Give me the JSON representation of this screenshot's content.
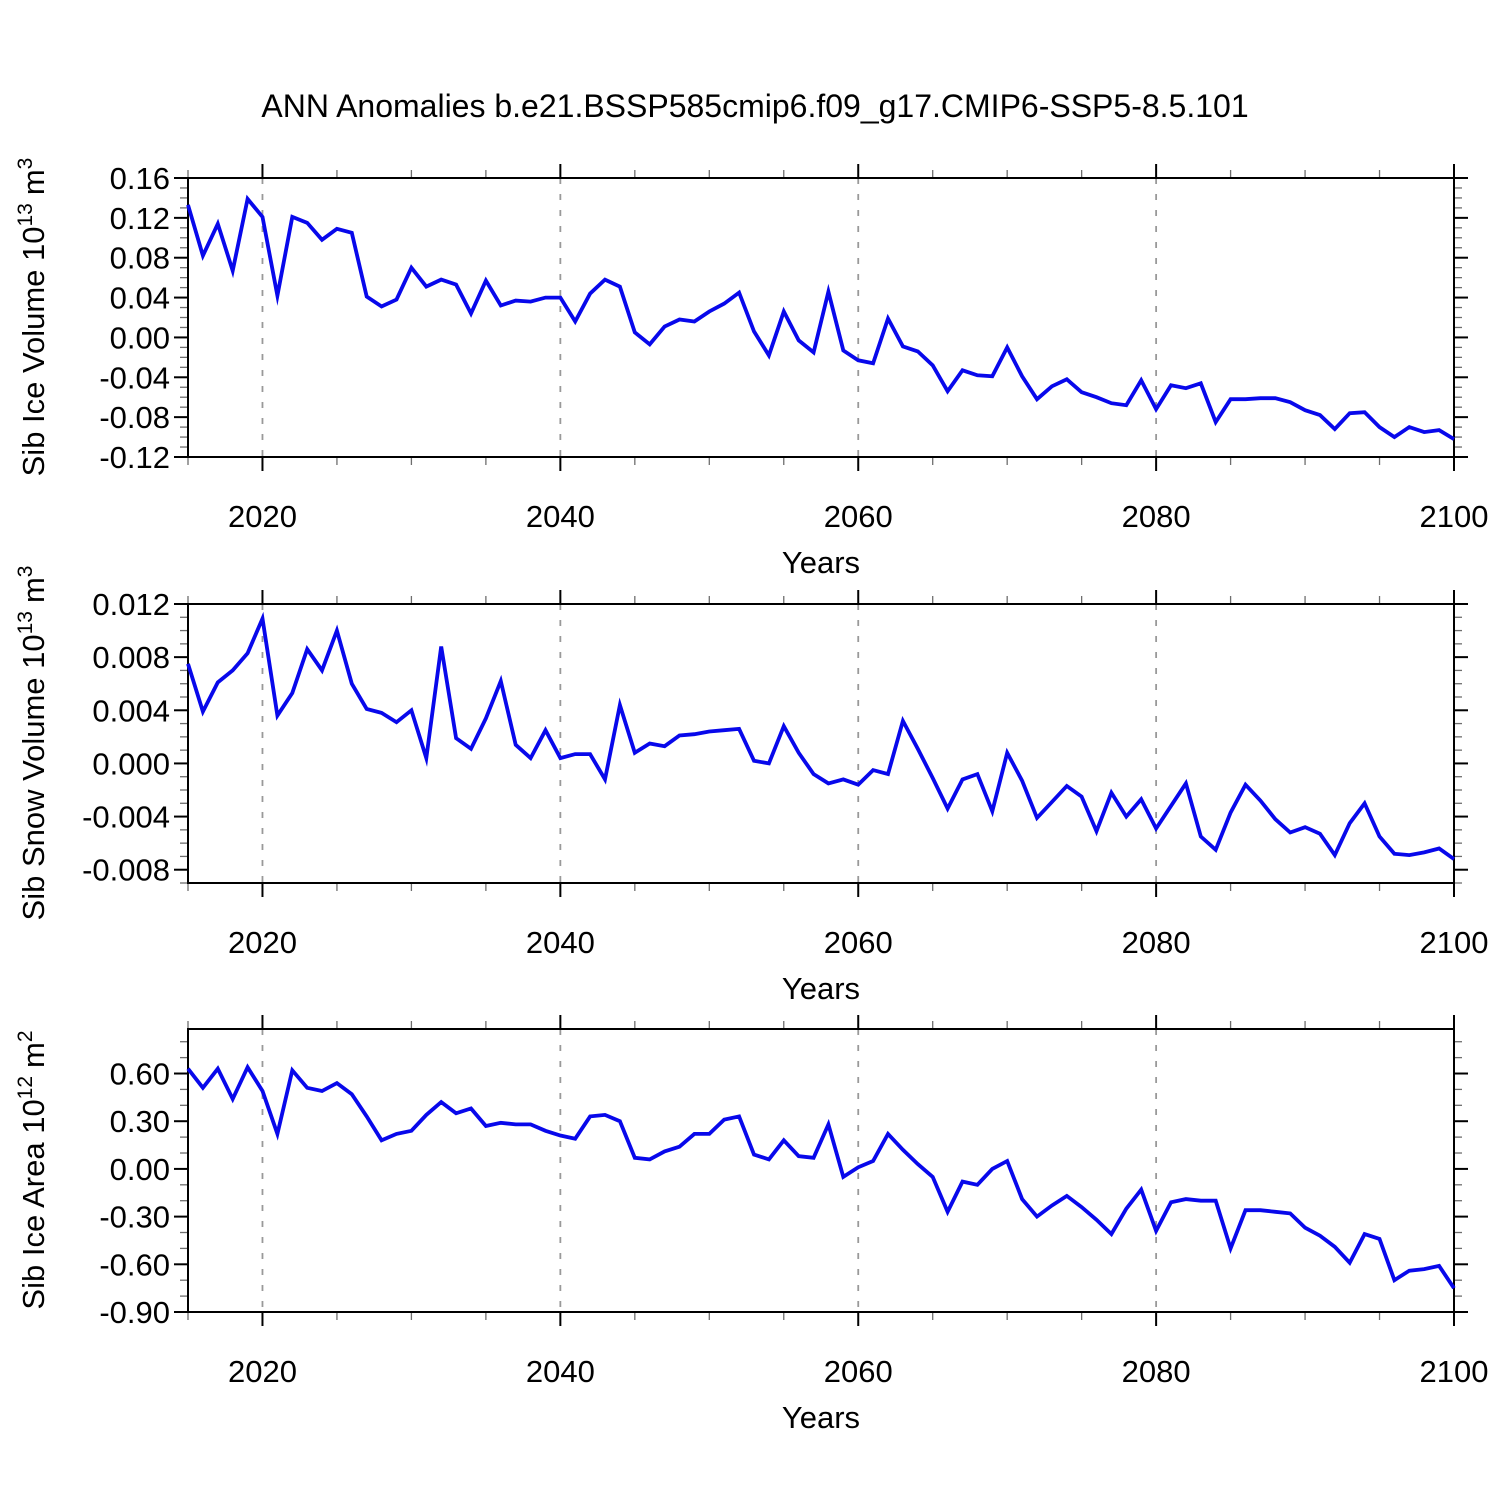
{
  "figure": {
    "title": "ANN Anomalies b.e21.BSSP585cmip6.f09_g17.CMIP6-SSP5-8.5.101"
  },
  "years": [
    2015,
    2016,
    2017,
    2018,
    2019,
    2020,
    2021,
    2022,
    2023,
    2024,
    2025,
    2026,
    2027,
    2028,
    2029,
    2030,
    2031,
    2032,
    2033,
    2034,
    2035,
    2036,
    2037,
    2038,
    2039,
    2040,
    2041,
    2042,
    2043,
    2044,
    2045,
    2046,
    2047,
    2048,
    2049,
    2050,
    2051,
    2052,
    2053,
    2054,
    2055,
    2056,
    2057,
    2058,
    2059,
    2060,
    2061,
    2062,
    2063,
    2064,
    2065,
    2066,
    2067,
    2068,
    2069,
    2070,
    2071,
    2072,
    2073,
    2074,
    2075,
    2076,
    2077,
    2078,
    2079,
    2080,
    2081,
    2082,
    2083,
    2084,
    2085,
    2086,
    2087,
    2088,
    2089,
    2090,
    2091,
    2092,
    2093,
    2094,
    2095,
    2096,
    2097,
    2098,
    2099,
    2100
  ],
  "chart_data": [
    {
      "type": "line",
      "name": "sib_ice_volume",
      "ylabel": {
        "prefix": "Sib Ice Volume 10",
        "exp": "13",
        "unit": "m",
        "unit_exp": "3"
      },
      "xlabel": "Years",
      "ylim": [
        -0.12,
        0.16
      ],
      "yticks": [
        0.16,
        0.12,
        0.08,
        0.04,
        0.0,
        -0.04,
        -0.08,
        -0.12
      ],
      "ytick_labels": [
        "0.16",
        "0.12",
        "0.08",
        "0.04",
        "0.00",
        "-0.04",
        "-0.08",
        "-0.12"
      ],
      "y_minor_step": 0.01,
      "xticks": [
        2020,
        2040,
        2060,
        2080,
        2100
      ],
      "xtick_labels": [
        "2020",
        "2040",
        "2060",
        "2080",
        "2100"
      ],
      "x_minor_step": 5,
      "grid_years": [
        2020,
        2040,
        2060,
        2080
      ],
      "line_color": "#0808EB",
      "values": [
        0.133,
        0.082,
        0.114,
        0.067,
        0.139,
        0.121,
        0.042,
        0.121,
        0.115,
        0.098,
        0.109,
        0.105,
        0.041,
        0.031,
        0.038,
        0.07,
        0.051,
        0.058,
        0.053,
        0.024,
        0.057,
        0.032,
        0.037,
        0.036,
        0.04,
        0.04,
        0.016,
        0.044,
        0.058,
        0.051,
        0.005,
        -0.007,
        0.011,
        0.018,
        0.016,
        0.026,
        0.034,
        0.045,
        0.006,
        -0.018,
        0.026,
        -0.003,
        -0.015,
        0.046,
        -0.013,
        -0.023,
        -0.026,
        0.019,
        -0.009,
        -0.014,
        -0.028,
        -0.054,
        -0.033,
        -0.038,
        -0.039,
        -0.01,
        -0.039,
        -0.062,
        -0.049,
        -0.042,
        -0.055,
        -0.06,
        -0.066,
        -0.068,
        -0.043,
        -0.072,
        -0.048,
        -0.051,
        -0.046,
        -0.085,
        -0.062,
        -0.062,
        -0.061,
        -0.061,
        -0.065,
        -0.073,
        -0.078,
        -0.092,
        -0.076,
        -0.075,
        -0.09,
        -0.1,
        -0.09,
        -0.095,
        -0.093,
        -0.102
      ]
    },
    {
      "type": "line",
      "name": "sib_snow_volume",
      "ylabel": {
        "prefix": "Sib Snow Volume 10",
        "exp": "13",
        "unit": "m",
        "unit_exp": "3"
      },
      "xlabel": "Years",
      "ylim": [
        -0.009,
        0.012
      ],
      "yticks": [
        0.012,
        0.008,
        0.004,
        0.0,
        -0.004,
        -0.008
      ],
      "ytick_labels": [
        "0.012",
        "0.008",
        "0.004",
        "0.000",
        "-0.004",
        "-0.008"
      ],
      "y_minor_step": 0.001,
      "xticks": [
        2020,
        2040,
        2060,
        2080,
        2100
      ],
      "xtick_labels": [
        "2020",
        "2040",
        "2060",
        "2080",
        "2100"
      ],
      "x_minor_step": 5,
      "grid_years": [
        2020,
        2040,
        2060,
        2080
      ],
      "line_color": "#0808EB",
      "values": [
        0.0075,
        0.0039,
        0.0061,
        0.007,
        0.0083,
        0.0109,
        0.0036,
        0.0053,
        0.0086,
        0.007,
        0.01,
        0.006,
        0.0041,
        0.0038,
        0.0031,
        0.004,
        0.0004,
        0.0088,
        0.0019,
        0.0011,
        0.0034,
        0.0062,
        0.0014,
        0.0004,
        0.0025,
        0.0004,
        0.0007,
        0.0007,
        -0.0012,
        0.0044,
        0.0008,
        0.0015,
        0.0013,
        0.0021,
        0.0022,
        0.0024,
        0.0025,
        0.0026,
        0.0002,
        0.0,
        0.0028,
        0.0008,
        -0.0008,
        -0.0015,
        -0.0012,
        -0.0016,
        -0.0005,
        -0.0008,
        0.0032,
        0.0011,
        -0.0011,
        -0.0034,
        -0.0012,
        -0.0008,
        -0.0036,
        0.0008,
        -0.0013,
        -0.0041,
        -0.0029,
        -0.0017,
        -0.0025,
        -0.0051,
        -0.0022,
        -0.004,
        -0.0027,
        -0.0049,
        -0.0032,
        -0.0015,
        -0.0055,
        -0.0065,
        -0.0037,
        -0.0016,
        -0.0028,
        -0.0042,
        -0.0052,
        -0.0048,
        -0.0053,
        -0.0069,
        -0.0045,
        -0.003,
        -0.0055,
        -0.0068,
        -0.0069,
        -0.0067,
        -0.0064,
        -0.0072
      ]
    },
    {
      "type": "line",
      "name": "sib_ice_area",
      "ylabel": {
        "prefix": "Sib Ice Area 10",
        "exp": "12",
        "unit": "m",
        "unit_exp": "2"
      },
      "xlabel": "Years",
      "ylim": [
        -0.9,
        0.88
      ],
      "yticks": [
        0.6,
        0.3,
        0.0,
        -0.3,
        -0.6,
        -0.9
      ],
      "ytick_labels": [
        "0.60",
        "0.30",
        "0.00",
        "-0.30",
        "-0.60",
        "-0.90"
      ],
      "y_minor_step": 0.1,
      "xticks": [
        2020,
        2040,
        2060,
        2080,
        2100
      ],
      "xtick_labels": [
        "2020",
        "2040",
        "2060",
        "2080",
        "2100"
      ],
      "x_minor_step": 5,
      "grid_years": [
        2020,
        2040,
        2060,
        2080
      ],
      "line_color": "#0808EB",
      "values": [
        0.63,
        0.51,
        0.63,
        0.44,
        0.64,
        0.49,
        0.22,
        0.62,
        0.51,
        0.49,
        0.54,
        0.47,
        0.33,
        0.18,
        0.22,
        0.24,
        0.34,
        0.42,
        0.35,
        0.38,
        0.27,
        0.29,
        0.28,
        0.28,
        0.24,
        0.21,
        0.19,
        0.33,
        0.34,
        0.3,
        0.07,
        0.06,
        0.11,
        0.14,
        0.22,
        0.22,
        0.31,
        0.33,
        0.09,
        0.06,
        0.18,
        0.08,
        0.07,
        0.28,
        -0.05,
        0.01,
        0.05,
        0.22,
        0.12,
        0.03,
        -0.05,
        -0.27,
        -0.08,
        -0.1,
        0.0,
        0.05,
        -0.19,
        -0.3,
        -0.23,
        -0.17,
        -0.24,
        -0.32,
        -0.41,
        -0.25,
        -0.13,
        -0.39,
        -0.21,
        -0.19,
        -0.2,
        -0.2,
        -0.5,
        -0.26,
        -0.26,
        -0.27,
        -0.28,
        -0.37,
        -0.42,
        -0.49,
        -0.59,
        -0.41,
        -0.44,
        -0.7,
        -0.64,
        -0.63,
        -0.61,
        -0.75
      ]
    }
  ]
}
